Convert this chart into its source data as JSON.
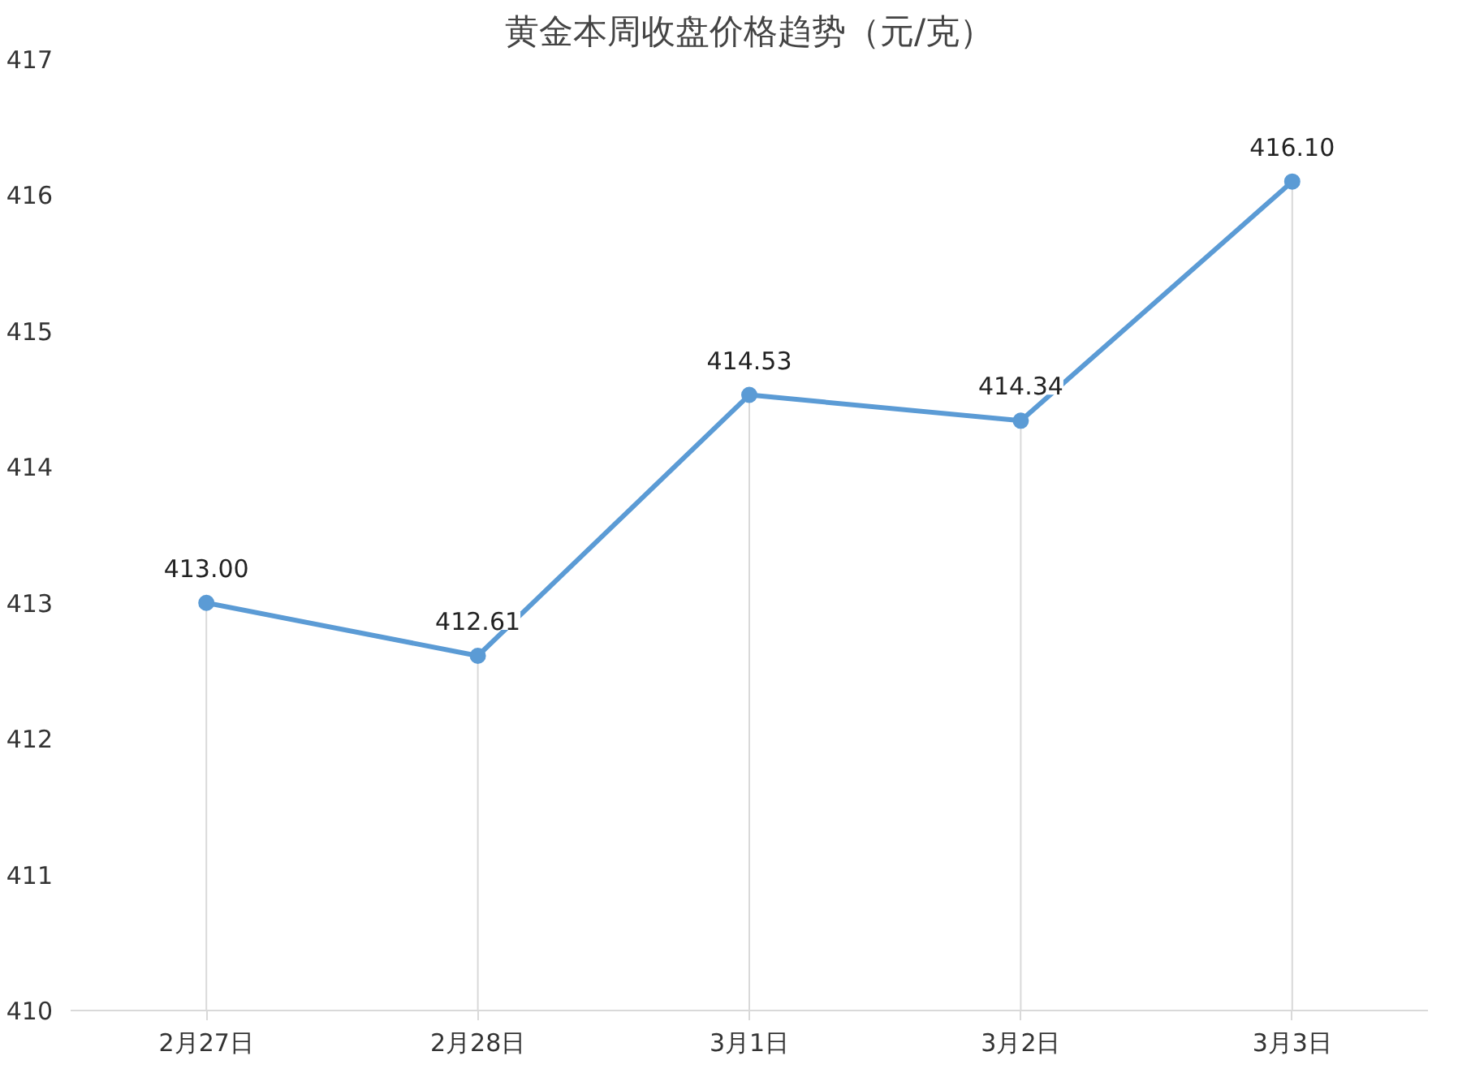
{
  "chart_data": {
    "type": "line",
    "title": "黄金本周收盘价格趋势（元/克）",
    "categories": [
      "2月27日",
      "2月28日",
      "3月1日",
      "3月2日",
      "3月3日"
    ],
    "series": [
      {
        "color": "#5b9bd5",
        "values": [
          413.0,
          412.61,
          414.53,
          414.34,
          416.1
        ],
        "value_labels": [
          "413.00",
          "412.61",
          "414.53",
          "414.34",
          "416.10"
        ]
      }
    ],
    "ylim": [
      410,
      417
    ],
    "yticks": [
      410,
      411,
      412,
      413,
      414,
      415,
      416,
      417
    ],
    "marker": "circle",
    "line_style": "solid",
    "grid": "x"
  }
}
